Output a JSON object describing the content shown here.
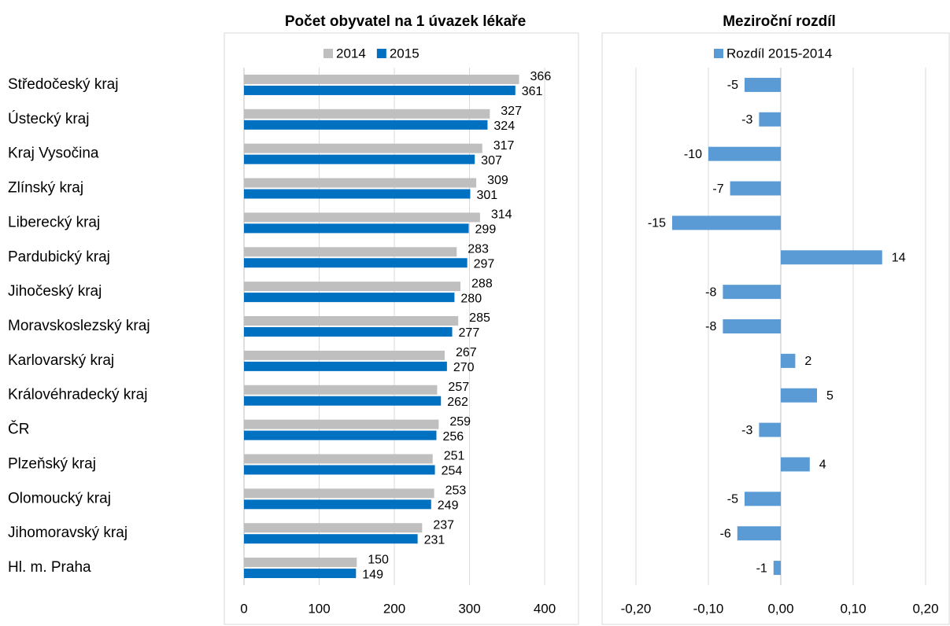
{
  "chart_data": [
    {
      "type": "bar",
      "orientation": "horizontal",
      "title": "Počet obyvatel na 1 úvazek lékaře",
      "categories": [
        "Středočeský kraj",
        "Ústecký kraj",
        "Kraj Vysočina",
        "Zlínský kraj",
        "Liberecký kraj",
        "Pardubický kraj",
        "Jihočeský kraj",
        "Moravskoslezský kraj",
        "Karlovarský kraj",
        "Královéhradecký kraj",
        "ČR",
        "Plzeňský kraj",
        "Olomoucký kraj",
        "Jihomoravský kraj",
        "Hl. m. Praha"
      ],
      "series": [
        {
          "name": "2014",
          "color": "#bfbfbf",
          "values": [
            366,
            327,
            317,
            309,
            314,
            283,
            288,
            285,
            267,
            257,
            259,
            251,
            253,
            237,
            150
          ]
        },
        {
          "name": "2015",
          "color": "#0070c0",
          "values": [
            361,
            324,
            307,
            301,
            299,
            297,
            280,
            277,
            270,
            262,
            256,
            254,
            249,
            231,
            149
          ]
        }
      ],
      "xlim": [
        0,
        400
      ],
      "xticks": [
        0,
        100,
        200,
        300,
        400
      ],
      "grid": true,
      "legend": "top"
    },
    {
      "type": "bar",
      "orientation": "horizontal",
      "title": "Meziroční rozdíl",
      "series": [
        {
          "name": "Rozdíl 2015-2014",
          "color": "#5b9bd5",
          "values": [
            -0.05,
            -0.03,
            -0.1,
            -0.07,
            -0.15,
            0.14,
            -0.08,
            -0.08,
            0.02,
            0.05,
            -0.03,
            0.04,
            -0.05,
            -0.06,
            -0.01
          ],
          "value_labels": [
            "-5",
            "-3",
            "-10",
            "-7",
            "-15",
            "14",
            "-8",
            "-8",
            "2",
            "5",
            "-3",
            "4",
            "-5",
            "-6",
            "-1"
          ]
        }
      ],
      "negative_label_color": "#ff0000",
      "positive_label_color": "#000000",
      "xlim": [
        -0.2,
        0.2
      ],
      "xticks": [
        {
          "value": -0.2,
          "label": "-0,20"
        },
        {
          "value": -0.1,
          "label": "-0,10"
        },
        {
          "value": 0,
          "label": "0,00"
        },
        {
          "value": 0.1,
          "label": "0,10"
        },
        {
          "value": 0.2,
          "label": "0,20"
        }
      ],
      "tick_label_color": "#ff0000",
      "grid": true,
      "legend": "top"
    }
  ]
}
